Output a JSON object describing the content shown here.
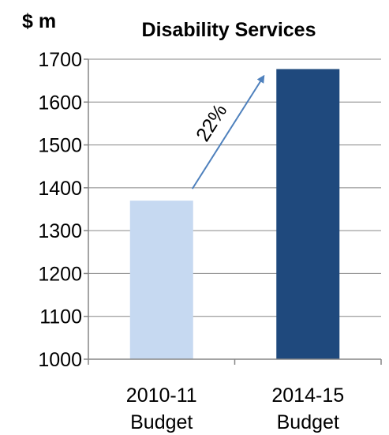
{
  "chart_data": {
    "type": "bar",
    "title": "Disability Services",
    "unit_label": "$ m",
    "categories": [
      [
        "2010-11",
        "Budget"
      ],
      [
        "2014-15",
        "Budget"
      ]
    ],
    "values": [
      1370,
      1677
    ],
    "ylim": [
      1000,
      1700
    ],
    "yticks": [
      "1700",
      "1600",
      "1500",
      "1400",
      "1300",
      "1200",
      "1100",
      "1000"
    ],
    "ytick_values": [
      1700,
      1600,
      1500,
      1400,
      1300,
      1200,
      1100,
      1000
    ],
    "grid": true,
    "legend": "none",
    "annotation": {
      "text": "22%",
      "from_category": 0,
      "to_category": 1
    },
    "colors": {
      "bar_1": "#c6d9f1",
      "bar_2": "#1f497d",
      "arrow": "#4f81bd",
      "grid": "#868686",
      "axis": "#868686"
    }
  }
}
